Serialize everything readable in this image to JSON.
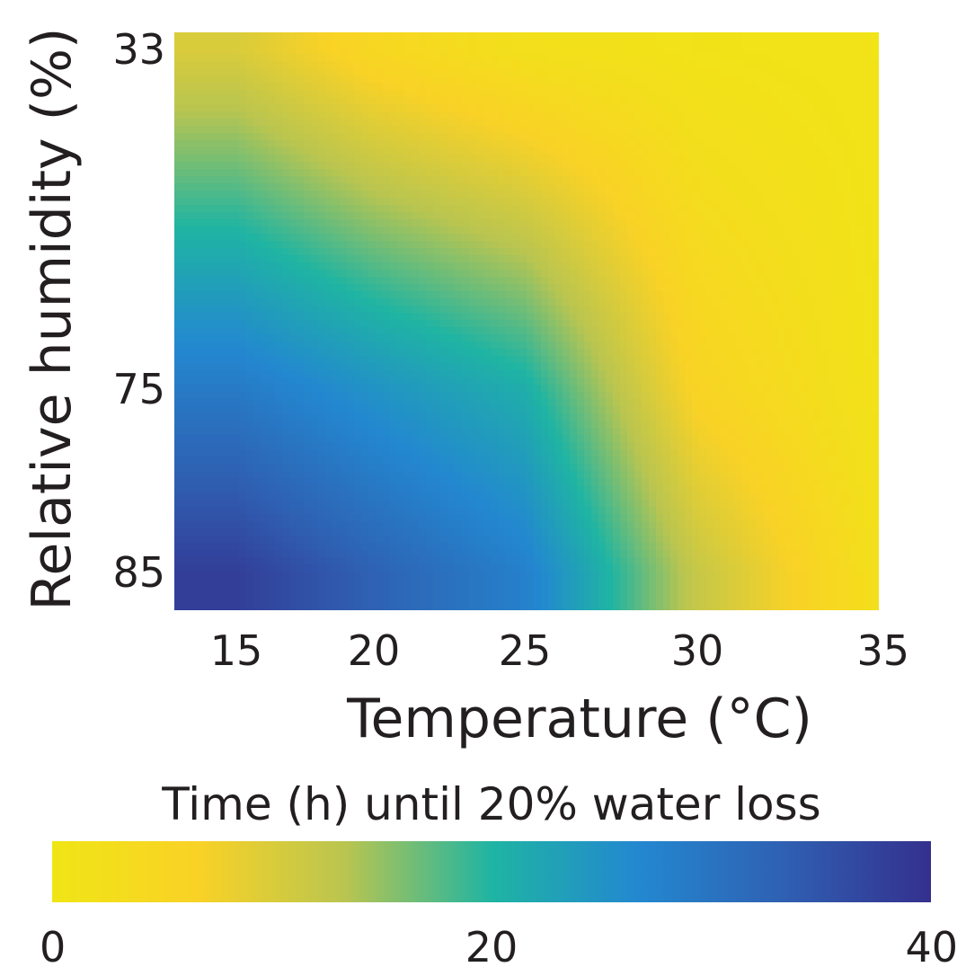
{
  "chart_data": {
    "type": "heatmap",
    "xlabel": "Temperature (°C)",
    "ylabel": "Relative humidity (%)",
    "x_ticks": [
      "15",
      "20",
      "25",
      "30",
      "35"
    ],
    "y_ticks": [
      "33",
      "75",
      "85"
    ],
    "x_values": [
      15,
      20,
      25,
      30,
      35
    ],
    "y_values": [
      33,
      75,
      85
    ],
    "z_units": "Time (h) until 20% water loss",
    "z_values": [
      [
        10,
        5,
        2,
        1,
        0.5
      ],
      [
        29,
        25,
        21,
        6,
        1
      ],
      [
        38,
        33,
        28,
        12,
        2
      ]
    ],
    "colorbar": {
      "title": "Time (h) until 20% water loss",
      "ticks": [
        "0",
        "20",
        "40"
      ],
      "min": 0,
      "max": 40
    },
    "colormap": [
      "#f0e516",
      "#f9d226",
      "#b9c550",
      "#1fb4a3",
      "#2388d0",
      "#2f60b2",
      "#34308e"
    ],
    "grid": false,
    "legend": "colorbar-bottom"
  }
}
